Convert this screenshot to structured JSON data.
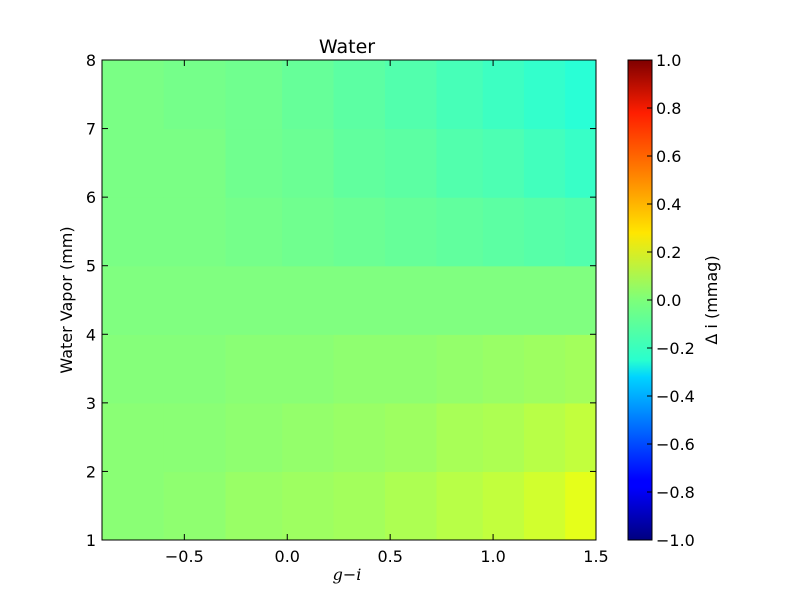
{
  "chart_data": {
    "type": "heatmap",
    "title": "Water",
    "xlabel": "g−i",
    "ylabel": "Water Vapor (mm)",
    "xlim": [
      -0.9,
      1.5
    ],
    "ylim": [
      1,
      8
    ],
    "x_ticks": [
      -0.5,
      0.0,
      0.5,
      1.0,
      1.5
    ],
    "x_tick_labels": [
      "−0.5",
      "0.0",
      "0.5",
      "1.0",
      "1.5"
    ],
    "y_ticks": [
      1,
      2,
      3,
      4,
      5,
      6,
      7,
      8
    ],
    "y_tick_labels": [
      "1",
      "2",
      "3",
      "4",
      "5",
      "6",
      "7",
      "8"
    ],
    "colormap": "jet",
    "colorbar": {
      "label": "Δ i (mmag)",
      "range": [
        -1.0,
        1.0
      ],
      "ticks": [
        -1.0,
        -0.8,
        -0.6,
        -0.4,
        -0.2,
        0.0,
        0.2,
        0.4,
        0.6,
        0.8,
        1.0
      ],
      "tick_labels": [
        "−1.0",
        "−0.8",
        "−0.6",
        "−0.4",
        "−0.2",
        "0.0",
        "0.2",
        "0.4",
        "0.6",
        "0.8",
        "1.0"
      ]
    },
    "grid": false,
    "y_rows": [
      1.5,
      2.5,
      3.5,
      4.5,
      5.5,
      6.5,
      7.5
    ],
    "x_bins": [
      {
        "x": -0.75,
        "values": [
          0.02,
          0.02,
          0.01,
          0.0,
          -0.01,
          -0.01,
          -0.01
        ]
      },
      {
        "x": -0.45,
        "values": [
          0.03,
          0.02,
          0.01,
          0.0,
          -0.01,
          -0.01,
          -0.02
        ]
      },
      {
        "x": -0.15,
        "values": [
          0.05,
          0.03,
          0.02,
          0.0,
          -0.02,
          -0.03,
          -0.03
        ]
      },
      {
        "x": 0.1,
        "values": [
          0.06,
          0.04,
          0.02,
          0.0,
          -0.03,
          -0.04,
          -0.05
        ]
      },
      {
        "x": 0.35,
        "values": [
          0.07,
          0.05,
          0.03,
          0.0,
          -0.04,
          -0.06,
          -0.07
        ]
      },
      {
        "x": 0.6,
        "values": [
          0.09,
          0.06,
          0.03,
          0.0,
          -0.05,
          -0.07,
          -0.09
        ]
      },
      {
        "x": 0.85,
        "values": [
          0.11,
          0.08,
          0.04,
          0.0,
          -0.06,
          -0.09,
          -0.11
        ]
      },
      {
        "x": 1.05,
        "values": [
          0.13,
          0.09,
          0.05,
          0.0,
          -0.07,
          -0.1,
          -0.13
        ]
      },
      {
        "x": 1.25,
        "values": [
          0.16,
          0.11,
          0.06,
          0.0,
          -0.08,
          -0.12,
          -0.15
        ]
      },
      {
        "x": 1.45,
        "values": [
          0.2,
          0.13,
          0.07,
          0.0,
          -0.09,
          -0.14,
          -0.17
        ]
      }
    ]
  }
}
